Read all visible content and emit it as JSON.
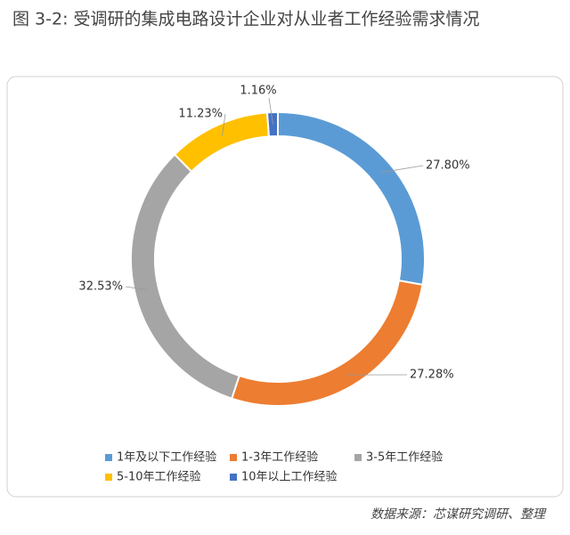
{
  "chart_data": {
    "type": "donut",
    "title": "图 3-2: 受调研的集成电路设计企业对从业者工作经验需求情况",
    "categories": [
      "1年及以下工作经验",
      "1-3年工作经验",
      "3-5年工作经验",
      "5-10年工作经验",
      "10年以上工作经验"
    ],
    "values": [
      27.8,
      27.28,
      32.53,
      11.23,
      1.16
    ],
    "value_labels": [
      "27.80%",
      "27.28%",
      "32.53%",
      "11.23%",
      "1.16%"
    ],
    "colors": [
      "#5b9bd5",
      "#ed7d31",
      "#a5a5a5",
      "#ffc000",
      "#4472c4"
    ],
    "legend": "bottom",
    "source": "数据来源：芯谋研究调研、整理"
  }
}
